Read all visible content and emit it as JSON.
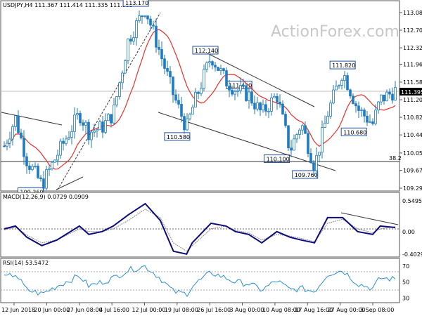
{
  "price_panel": {
    "header": "USDJPY,H4  111.367 111.414 111.335 111.395",
    "watermark": "ActionForex.com",
    "current_price_label": "111.395",
    "fib_label": "38.2",
    "callouts": [
      "113.170",
      "112.140",
      "111.420",
      "111.820",
      "110.580",
      "110.680",
      "110.100",
      "109.760",
      "109.360"
    ]
  },
  "macd_panel": {
    "header": "MACD(12,26,9) 0.0729 0.0909"
  },
  "rsi_panel": {
    "header": "RSI(14) 53.5472"
  },
  "x_axis": {
    "labels": [
      "12 Jun 2018",
      "20 Jun 00:00",
      "27 Jun 08:00",
      "4 Jul 16:00",
      "12 Jul 00:00",
      "19 Jul 08:00",
      "26 Jul 16:00",
      "3 Aug 00:00",
      "10 Aug 08:00",
      "17 Aug 16:00",
      "27 Aug 00:00",
      "3 Sep 08:00"
    ]
  },
  "colors": {
    "candle": "#1e7bbf",
    "ma": "#e8302a",
    "macd": "#0b0b7a",
    "signal": "#888888",
    "rsi": "#2a8fd6",
    "grid": "#555555",
    "callout_border": "#1f4e9c"
  },
  "chart_data": [
    {
      "type": "line",
      "name": "USDJPY H4 price",
      "x": [
        0,
        6,
        12,
        20,
        28,
        40,
        45,
        52,
        58,
        66,
        75,
        83,
        90,
        97,
        100,
        110,
        118,
        123,
        130,
        137,
        145,
        152,
        158,
        165,
        172,
        180,
        188,
        196,
        200,
        208
      ],
      "y": [
        110.2,
        110.8,
        109.9,
        109.36,
        110.0,
        110.9,
        110.5,
        110.6,
        110.9,
        112.5,
        113.17,
        112.2,
        111.3,
        110.58,
        111.0,
        112.14,
        111.6,
        111.42,
        111.3,
        110.9,
        111.3,
        110.1,
        110.7,
        109.76,
        110.9,
        111.82,
        111.0,
        110.68,
        111.2,
        111.395
      ],
      "ylim": [
        109.29,
        113.14
      ],
      "yticks": [
        109.29,
        109.675,
        110.05,
        110.44,
        110.82,
        111.2,
        111.58,
        111.965,
        112.32,
        112.7,
        113.08
      ],
      "overlays": {
        "moving_average_color": "red",
        "resistance_trendlines": true,
        "support_trendlines": true,
        "fib_level": {
          "name": "38.2",
          "value": 109.92
        }
      }
    },
    {
      "type": "line",
      "name": "MACD(12,26,9)",
      "series": [
        {
          "name": "MACD",
          "values": [
            0.05,
            0.1,
            -0.1,
            -0.25,
            -0.15,
            0.1,
            -0.05,
            0.0,
            0.1,
            0.3,
            0.5,
            0.2,
            -0.35,
            -0.4,
            -0.2,
            0.15,
            0.1,
            0.0,
            -0.05,
            -0.2,
            0.0,
            -0.1,
            -0.15,
            -0.2,
            0.25,
            0.25,
            0.0,
            -0.05,
            0.1,
            0.0729
          ]
        },
        {
          "name": "Signal",
          "values": [
            0.03,
            0.08,
            -0.06,
            -0.2,
            -0.15,
            0.05,
            0.0,
            0.0,
            0.05,
            0.2,
            0.4,
            0.25,
            -0.2,
            -0.35,
            -0.25,
            0.05,
            0.1,
            0.02,
            -0.02,
            -0.15,
            -0.05,
            -0.08,
            -0.12,
            -0.18,
            0.15,
            0.22,
            0.05,
            -0.02,
            0.05,
            0.0909
          ]
        }
      ],
      "ylim": [
        -0.4029,
        0.5495
      ],
      "yticks": [
        -0.4029,
        0.0,
        0.5495
      ],
      "level_line": 0.0
    },
    {
      "type": "line",
      "name": "RSI(14)",
      "values": [
        55,
        60,
        40,
        35,
        45,
        58,
        45,
        50,
        55,
        65,
        70,
        55,
        38,
        35,
        45,
        62,
        55,
        50,
        48,
        40,
        52,
        40,
        42,
        38,
        60,
        65,
        48,
        42,
        55,
        53.5472
      ],
      "ylim": [
        25,
        78
      ],
      "yticks": [
        70,
        50,
        30
      ]
    }
  ]
}
